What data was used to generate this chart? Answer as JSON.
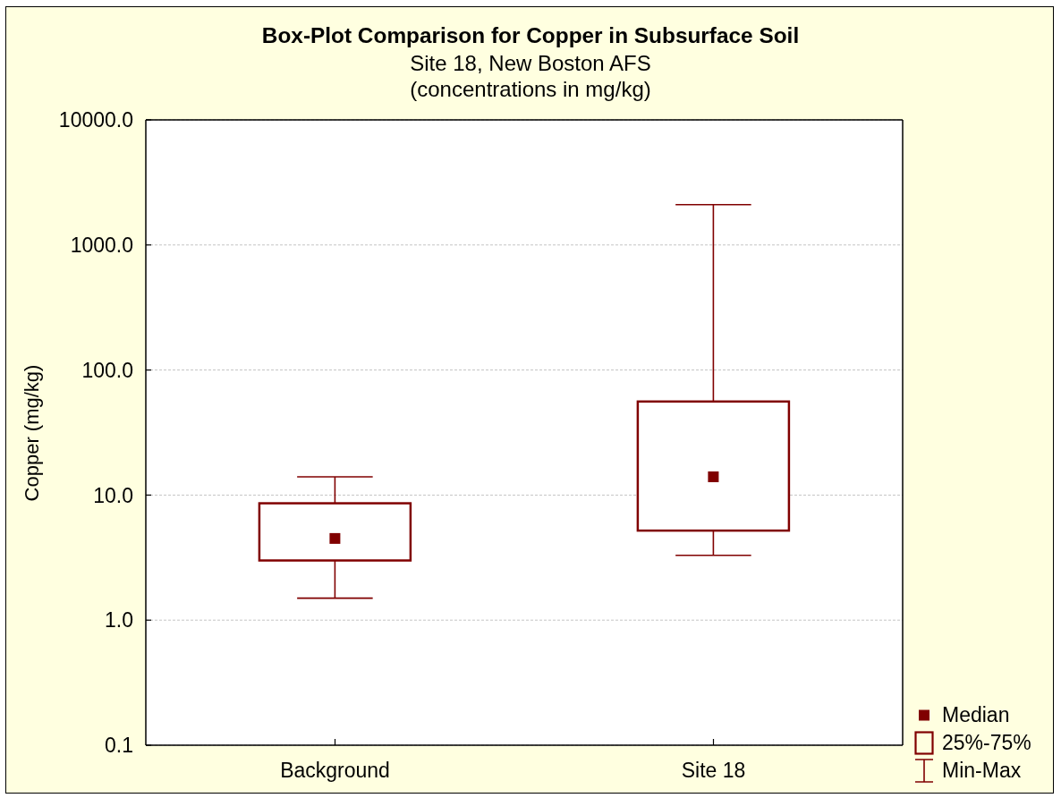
{
  "chart_data": {
    "type": "box",
    "title": "Box-Plot Comparison for Copper in Subsurface Soil",
    "subtitle": "Site 18, New Boston AFS\n(concentrations in mg/kg)",
    "ylabel": "Copper (mg/kg)",
    "categories": [
      "Background",
      "Site 18"
    ],
    "boxes": [
      {
        "low": 1.5,
        "q1": 3.0,
        "median": 4.5,
        "q3": 8.6,
        "high": 14
      },
      {
        "low": 3.3,
        "q1": 5.2,
        "median": 14,
        "q3": 56,
        "high": 2100
      }
    ],
    "color": "#800000",
    "marker": "square",
    "log": true,
    "grid": "y",
    "ylim": [
      0.1,
      10000
    ],
    "yticks": [
      0.1,
      {
        "value": 1,
        "label": "1.0"
      },
      {
        "value": 10,
        "label": "10.0"
      },
      {
        "value": 100,
        "label": "100.0"
      },
      {
        "value": 1000,
        "label": "1000.0"
      },
      {
        "value": 10000,
        "label": "10000.0"
      }
    ],
    "annotations": [
      "Median",
      "25%-75%",
      "Min-Max"
    ]
  }
}
